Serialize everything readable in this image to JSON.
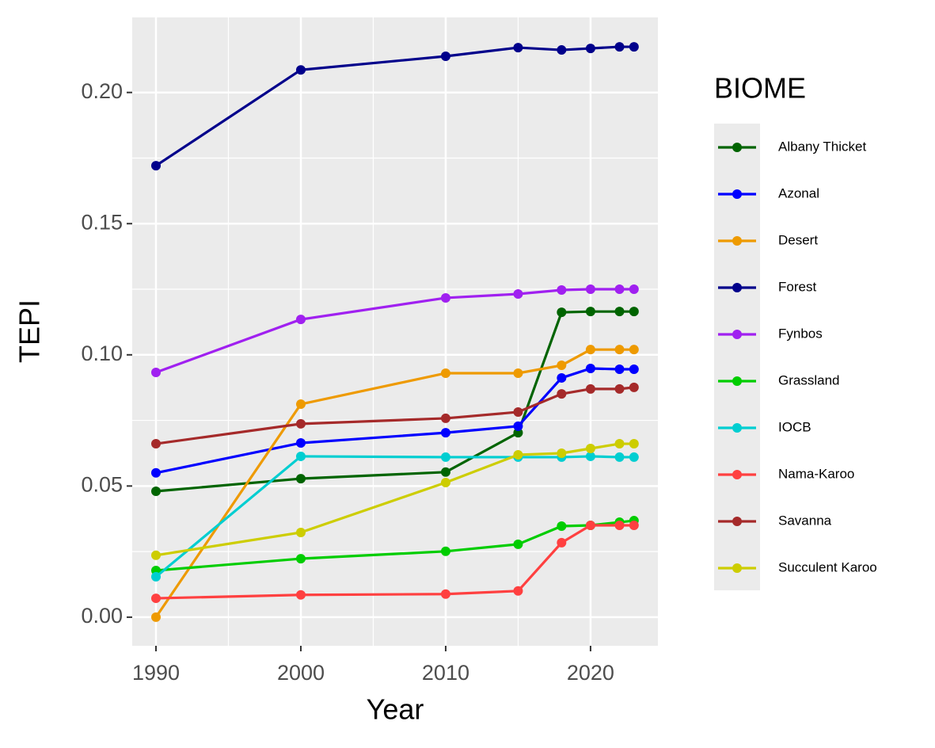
{
  "chart_data": {
    "type": "line",
    "x_label": "Year",
    "y_label": "TEPI",
    "legend_title": "BIOME",
    "legend": "right",
    "grid": true,
    "x": [
      1990,
      2000,
      2010,
      2015,
      2018,
      2020,
      2022,
      2023
    ],
    "xlim": [
      1988.36,
      2024.65
    ],
    "xticks": [
      1990,
      2000,
      2010,
      2020
    ],
    "ylim": [
      -0.0109,
      0.2286
    ],
    "yticks": [
      {
        "value": 0,
        "label": "0.00"
      },
      {
        "value": 0.05,
        "label": "0.05"
      },
      {
        "value": 0.1,
        "label": "0.10"
      },
      {
        "value": 0.15,
        "label": "0.15"
      },
      {
        "value": 0.2,
        "label": "0.20"
      }
    ],
    "series": [
      {
        "name": "Albany Thicket",
        "color": "#006400",
        "values": [
          0.048,
          0.0528,
          0.0553,
          0.0703,
          0.1162,
          0.1165,
          0.1165,
          0.1165
        ]
      },
      {
        "name": "Azonal",
        "color": "#0000FF",
        "values": [
          0.055,
          0.0664,
          0.0703,
          0.0728,
          0.0912,
          0.0948,
          0.0945,
          0.0945
        ]
      },
      {
        "name": "Desert",
        "color": "#EE9A00",
        "values": [
          0,
          0.0812,
          0.093,
          0.093,
          0.096,
          0.102,
          0.102,
          0.102
        ]
      },
      {
        "name": "Forest",
        "color": "#00008B",
        "values": [
          0.1721,
          0.2086,
          0.2138,
          0.2171,
          0.2162,
          0.2168,
          0.2174,
          0.2174
        ]
      },
      {
        "name": "Fynbos",
        "color": "#A020F0",
        "values": [
          0.0933,
          0.1135,
          0.1217,
          0.1232,
          0.1247,
          0.125,
          0.125,
          0.125
        ]
      },
      {
        "name": "Grassland",
        "color": "#00CD00",
        "values": [
          0.0178,
          0.0223,
          0.0251,
          0.0278,
          0.0347,
          0.035,
          0.0362,
          0.0368
        ]
      },
      {
        "name": "IOCB",
        "color": "#00CED1",
        "values": [
          0.0154,
          0.0613,
          0.061,
          0.061,
          0.061,
          0.0613,
          0.061,
          0.061
        ]
      },
      {
        "name": "Nama-Karoo",
        "color": "#FF4040",
        "values": [
          0.0072,
          0.0085,
          0.0088,
          0.01,
          0.0284,
          0.035,
          0.035,
          0.035
        ]
      },
      {
        "name": "Savanna",
        "color": "#A52A2A",
        "values": [
          0.0661,
          0.0737,
          0.0758,
          0.0782,
          0.0851,
          0.087,
          0.087,
          0.0876
        ]
      },
      {
        "name": "Succulent Karoo",
        "color": "#CDCD00",
        "values": [
          0.0236,
          0.0323,
          0.0513,
          0.0619,
          0.0625,
          0.0643,
          0.0661,
          0.0661
        ]
      }
    ]
  }
}
